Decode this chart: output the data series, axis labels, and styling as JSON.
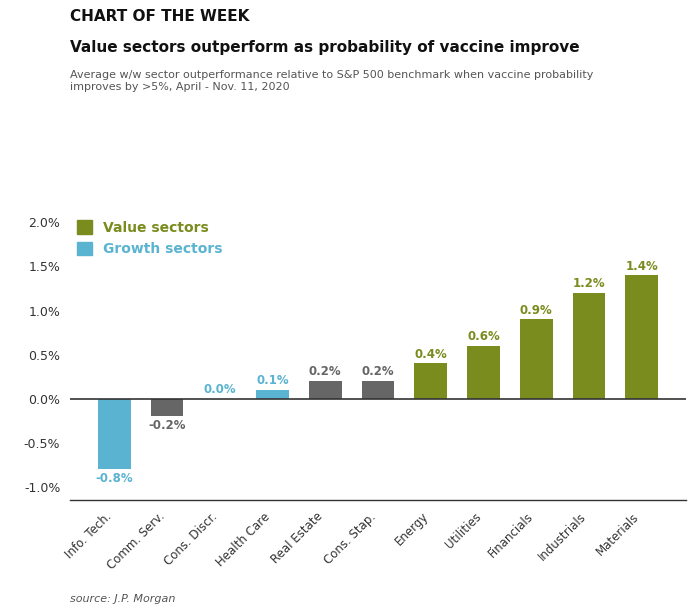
{
  "chart_title": "CHART OF THE WEEK",
  "subtitle": "Value sectors outperform as probability of vaccine improve",
  "description": "Average w/w sector outperformance relative to S&P 500 benchmark when vaccine probability\nimproves by >5%, April - Nov. 11, 2020",
  "source": "source: J.P. Morgan",
  "categories": [
    "Info. Tech.",
    "Comm. Serv.",
    "Cons. Discr.",
    "Health Care",
    "Real Estate",
    "Cons. Stap.",
    "Energy",
    "Utilities",
    "Financials",
    "Industrials",
    "Materials"
  ],
  "values": [
    -0.8,
    -0.2,
    0.0,
    0.1,
    0.2,
    0.2,
    0.4,
    0.6,
    0.9,
    1.2,
    1.4
  ],
  "bar_colors": [
    "#5ab4d1",
    "#666666",
    "#666666",
    "#5ab4d1",
    "#666666",
    "#666666",
    "#7a8c1e",
    "#7a8c1e",
    "#7a8c1e",
    "#7a8c1e",
    "#7a8c1e"
  ],
  "value_color": "#7a8c1e",
  "growth_color": "#5ab4d1",
  "label_colors": [
    "#5ab4d1",
    "#666666",
    "#5ab4d1",
    "#5ab4d1",
    "#666666",
    "#666666",
    "#7a8c1e",
    "#7a8c1e",
    "#7a8c1e",
    "#7a8c1e",
    "#7a8c1e"
  ],
  "ylim": [
    -1.15,
    2.1
  ],
  "yticks": [
    -1.0,
    -0.5,
    0.0,
    0.5,
    1.0,
    1.5,
    2.0
  ],
  "ytick_labels": [
    "-1.0%",
    "-0.5%",
    "0.0%",
    "0.5%",
    "1.0%",
    "1.5%",
    "2.0%"
  ],
  "bg_color": "#ffffff",
  "chart_title_fontsize": 11,
  "subtitle_fontsize": 11,
  "desc_fontsize": 8
}
